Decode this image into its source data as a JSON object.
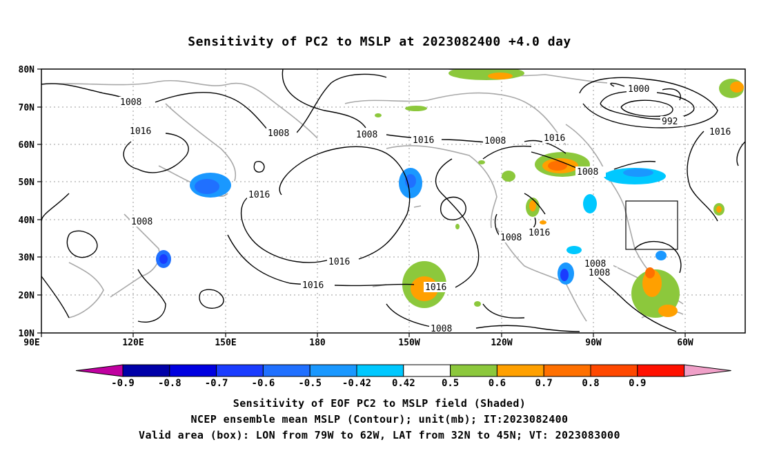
{
  "title": "Sensitivity of PC2 to MSLP at 2023082400 +4.0 day",
  "lat_labels": [
    "80N",
    "70N",
    "60N",
    "50N",
    "40N",
    "30N",
    "20N",
    "10N"
  ],
  "lon_labels": [
    "90E",
    "120E",
    "150E",
    "180",
    "150W",
    "120W",
    "90W",
    "60W"
  ],
  "contour_labels": [
    "1008",
    "1016",
    "1008",
    "1008",
    "1016",
    "1008",
    "1016",
    "1016",
    "1008",
    "1008",
    "1016",
    "1016",
    "1016",
    "1008",
    "1008",
    "1008",
    "1008",
    "1000",
    "992",
    "1016",
    "1016"
  ],
  "colorbar": {
    "labels": [
      "-0.9",
      "-0.8",
      "-0.7",
      "-0.6",
      "-0.5",
      "-0.42",
      "0.42",
      "0.5",
      "0.6",
      "0.7",
      "0.8",
      "0.9"
    ],
    "colors": [
      "#c000a0",
      "#0000a8",
      "#0000e0",
      "#1a3cff",
      "#2070ff",
      "#1a98ff",
      "#00c8ff",
      "#ffffff",
      "#8cc83c",
      "#ffa000",
      "#ff7000",
      "#ff4800",
      "#ff1000",
      "#f0a0c8"
    ]
  },
  "valid_box": {
    "lon": [
      "79W",
      "62W"
    ],
    "lat": [
      "32N",
      "45N"
    ]
  },
  "captions": {
    "line1": "Sensitivity of EOF PC2 to MSLP field (Shaded)",
    "line2": "NCEP ensemble mean MSLP (Contour); unit(mb); IT:2023082400",
    "line3": "Valid area (box): LON from 79W to 62W, LAT from 32N to 45N; VT: 2023083000"
  }
}
